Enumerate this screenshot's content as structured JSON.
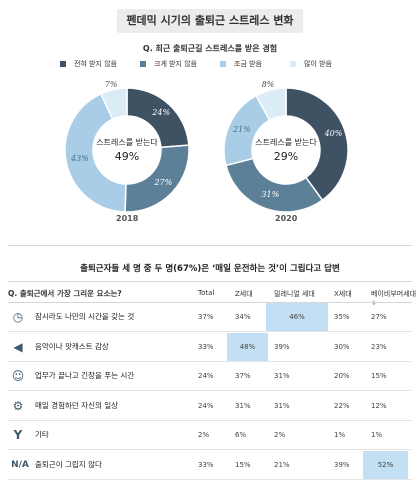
{
  "title": "펜데믹 시기의 출퇴근 스트레스 변화",
  "question": "Q. 최근 출퇴근길 스트레스를 받은 경험",
  "legend": [
    {
      "label": "전혀 받지 않음",
      "color": "#3e5263"
    },
    {
      "label": "크게 받지 않음",
      "color": "#5d8099"
    },
    {
      "label": "조금 받음",
      "color": "#a9cde6"
    },
    {
      "label": "많이 받음",
      "color": "#dcecf7"
    }
  ],
  "center_label": "스트레스를 받는다",
  "chart_data": [
    {
      "type": "pie",
      "year": "2018",
      "center_value": "49%",
      "categories": [
        "전혀 받지 않음",
        "크게 받지 않음",
        "조금 받음",
        "많이 받음"
      ],
      "values": [
        24,
        27,
        43,
        7
      ],
      "value_labels": [
        "24%",
        "27%",
        "43%",
        "7%"
      ]
    },
    {
      "type": "pie",
      "year": "2020",
      "center_value": "29%",
      "categories": [
        "전혀 받지 않음",
        "크게 받지 않음",
        "조금 받음",
        "많이 받음"
      ],
      "values": [
        40,
        31,
        21,
        8
      ],
      "value_labels": [
        "40%",
        "31%",
        "21%",
        "8%"
      ]
    }
  ],
  "subtitle": "출퇴근자들 세 명 중 두 명(67%)은 ‘매일 운전하는 것’이 그립다고 답변",
  "table": {
    "question": "Q. 출퇴근에서 가장 그리운 요소는?",
    "columns": [
      "Total",
      "Z세대",
      "밀레니얼 세대",
      "X세대",
      "베이비부머세대+"
    ],
    "rows": [
      {
        "icon": "clock-icon",
        "glyph": "◷",
        "label": "잠시라도 나만의 시간을 갖는 것",
        "values": [
          "37%",
          "34%",
          "46%",
          "35%",
          "27%"
        ],
        "highlight": 2
      },
      {
        "icon": "speaker-icon",
        "glyph": "◀",
        "label": "음악이나 팟캐스트 감상",
        "values": [
          "33%",
          "48%",
          "39%",
          "30%",
          "23%"
        ],
        "highlight": 1
      },
      {
        "icon": "smile-icon",
        "glyph": "☺",
        "label": "업무가 끝나고 긴장을 푸는 시간",
        "values": [
          "24%",
          "37%",
          "31%",
          "20%",
          "15%"
        ],
        "highlight": -1
      },
      {
        "icon": "gears-icon",
        "glyph": "⚙",
        "label": "매일 경험하던 자신의 일상",
        "values": [
          "24%",
          "31%",
          "31%",
          "22%",
          "12%"
        ],
        "highlight": -1
      },
      {
        "icon": "branch-icon",
        "glyph": "Y",
        "label": "기타",
        "values": [
          "2%",
          "6%",
          "2%",
          "1%",
          "1%"
        ],
        "highlight": -1
      },
      {
        "icon": "na-icon",
        "glyph": "N/A",
        "label": "출퇴근이 그립지 않다",
        "values": [
          "33%",
          "15%",
          "21%",
          "39%",
          "52%"
        ],
        "highlight": 4
      }
    ]
  }
}
